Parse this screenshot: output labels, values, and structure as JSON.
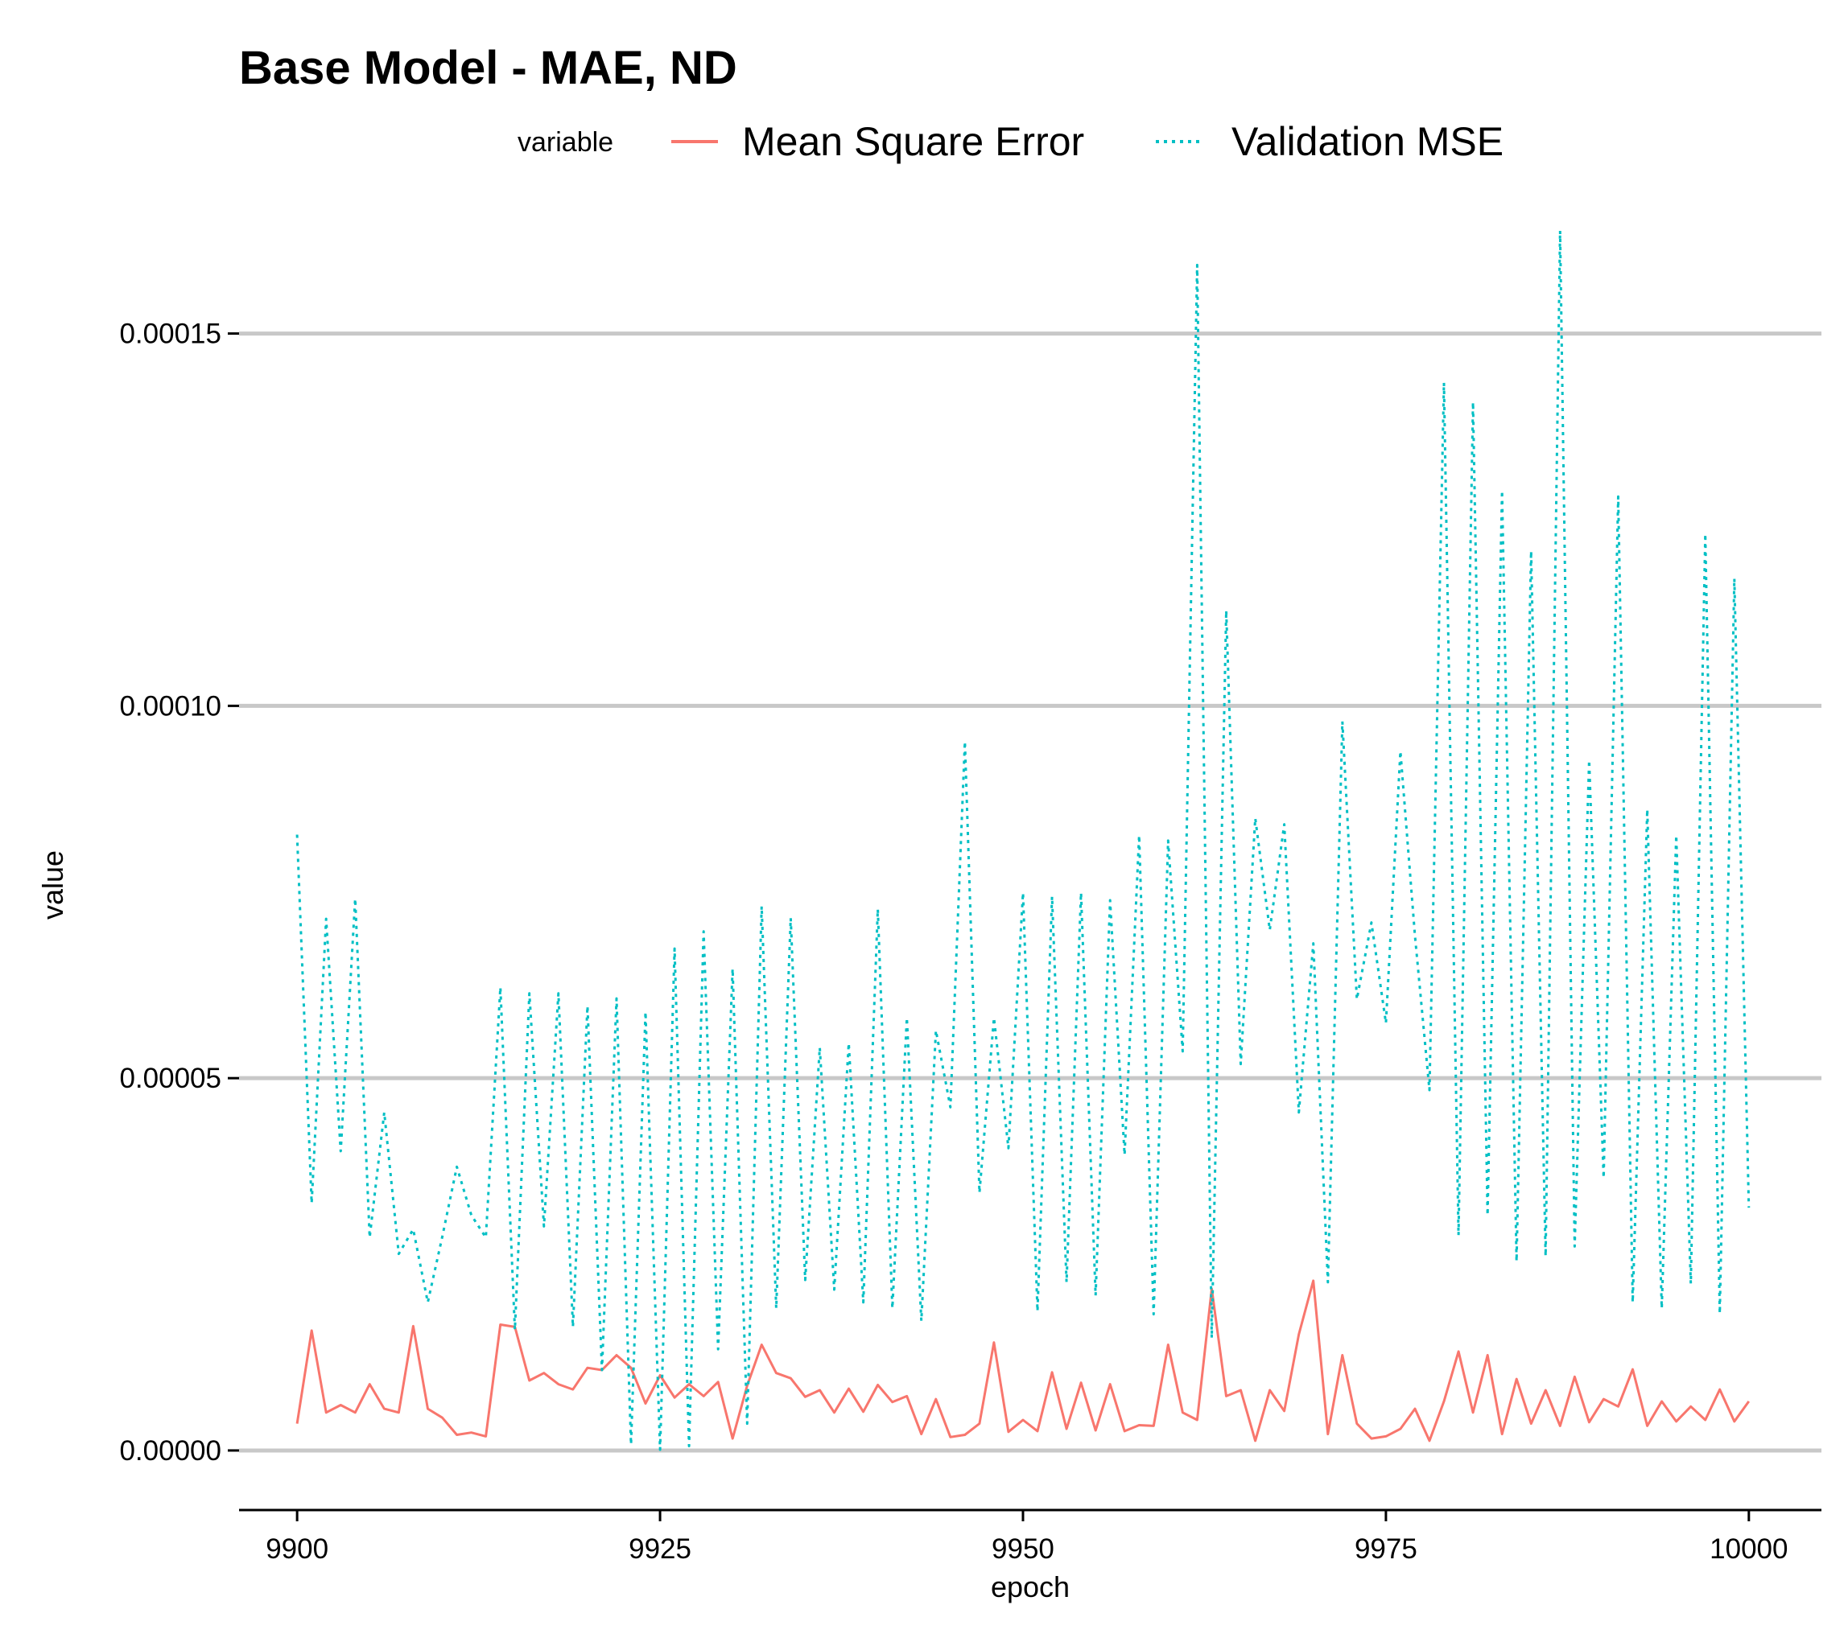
{
  "chart_data": {
    "type": "line",
    "title": "Base Model - MAE, ND",
    "xlabel": "epoch",
    "ylabel": "value",
    "xlim": [
      9896,
      10005
    ],
    "ylim": [
      -8e-06,
      0.000168
    ],
    "x_ticks": [
      9900,
      9925,
      9950,
      9975,
      10000
    ],
    "x_tick_labels": [
      "9900",
      "9925",
      "9950",
      "9975",
      "10000"
    ],
    "y_ticks": [
      0,
      5e-05,
      0.0001,
      0.00015
    ],
    "y_tick_labels": [
      "0.00000",
      "0.00005",
      "0.00010",
      "0.00015"
    ],
    "grid": "horizontal-major",
    "legend": {
      "title": "variable",
      "placement": "top"
    },
    "series": [
      {
        "name": "Mean Square Error",
        "color": "#f8766d",
        "linestyle": "solid",
        "x": [
          9900,
          9901,
          9902,
          9903,
          9904,
          9905,
          9906,
          9907,
          9908,
          9909,
          9910,
          9911,
          9912,
          9913,
          9914,
          9915,
          9916,
          9917,
          9918,
          9919,
          9920,
          9921,
          9922,
          9923,
          9924,
          9925,
          9926,
          9927,
          9928,
          9929,
          9930,
          9931,
          9932,
          9933,
          9934,
          9935,
          9936,
          9937,
          9938,
          9939,
          9940,
          9941,
          9942,
          9943,
          9944,
          9945,
          9946,
          9947,
          9948,
          9949,
          9950,
          9951,
          9952,
          9953,
          9954,
          9955,
          9956,
          9957,
          9958,
          9959,
          9960,
          9961,
          9962,
          9963,
          9964,
          9965,
          9966,
          9967,
          9968,
          9969,
          9970,
          9971,
          9972,
          9973,
          9974,
          9975,
          9976,
          9977,
          9978,
          9979,
          9980,
          9981,
          9982,
          9983,
          9984,
          9985,
          9986,
          9987,
          9988,
          9989,
          9990,
          9991,
          9992,
          9993,
          9994,
          9995,
          9996,
          9997,
          9998,
          9999,
          10000
        ],
        "values": [
          3.6e-06,
          1.61e-05,
          5.1e-06,
          6.1e-06,
          5.1e-06,
          8.9e-06,
          5.6e-06,
          5.1e-06,
          1.67e-05,
          5.6e-06,
          4.4e-06,
          2.1e-06,
          2.4e-06,
          1.9e-06,
          1.69e-05,
          1.66e-05,
          9.4e-06,
          1.04e-05,
          8.9e-06,
          8.2e-06,
          1.11e-05,
          1.08e-05,
          1.28e-05,
          1.11e-05,
          6.3e-06,
          1.01e-05,
          7.1e-06,
          8.9e-06,
          7.3e-06,
          9.2e-06,
          1.6e-06,
          8.7e-06,
          1.42e-05,
          1.04e-05,
          9.7e-06,
          7.2e-06,
          8.1e-06,
          5.1e-06,
          8.3e-06,
          5.2e-06,
          8.8e-06,
          6.5e-06,
          7.3e-06,
          2.2e-06,
          6.9e-06,
          1.8e-06,
          2.1e-06,
          3.6e-06,
          1.45e-05,
          2.5e-06,
          4.1e-06,
          2.6e-06,
          1.05e-05,
          2.9e-06,
          9.1e-06,
          2.7e-06,
          8.9e-06,
          2.6e-06,
          3.4e-06,
          3.3e-06,
          1.42e-05,
          5.1e-06,
          4.1e-06,
          2.17e-05,
          7.3e-06,
          8.1e-06,
          1.3e-06,
          8.1e-06,
          5.3e-06,
          1.56e-05,
          2.28e-05,
          2.2e-06,
          1.28e-05,
          3.6e-06,
          1.6e-06,
          1.9e-06,
          2.9e-06,
          5.6e-06,
          1.3e-06,
          6.6e-06,
          1.33e-05,
          5.1e-06,
          1.28e-05,
          2.2e-06,
          9.6e-06,
          3.6e-06,
          8.1e-06,
          3.3e-06,
          9.9e-06,
          3.8e-06,
          6.9e-06,
          5.9e-06,
          1.09e-05,
          3.3e-06,
          6.6e-06,
          3.9e-06,
          5.9e-06,
          4.1e-06,
          8.2e-06,
          3.9e-06,
          6.6e-06
        ]
      },
      {
        "name": "Validation MSE",
        "color": "#00bfc4",
        "linestyle": "dotted",
        "x": [
          9900,
          9901,
          9902,
          9903,
          9904,
          9905,
          9906,
          9907,
          9908,
          9909,
          9910,
          9911,
          9912,
          9913,
          9914,
          9915,
          9916,
          9917,
          9918,
          9919,
          9920,
          9921,
          9922,
          9923,
          9924,
          9925,
          9926,
          9927,
          9928,
          9929,
          9930,
          9931,
          9932,
          9933,
          9934,
          9935,
          9936,
          9937,
          9938,
          9939,
          9940,
          9941,
          9942,
          9943,
          9944,
          9945,
          9946,
          9947,
          9948,
          9949,
          9950,
          9951,
          9952,
          9953,
          9954,
          9955,
          9956,
          9957,
          9958,
          9959,
          9960,
          9961,
          9962,
          9963,
          9964,
          9965,
          9966,
          9967,
          9968,
          9969,
          9970,
          9971,
          9972,
          9973,
          9974,
          9975,
          9976,
          9977,
          9978,
          9979,
          9980,
          9981,
          9982,
          9983,
          9984,
          9985,
          9986,
          9987,
          9988,
          9989,
          9990,
          9991,
          9992,
          9993,
          9994,
          9995,
          9996,
          9997,
          9998,
          9999,
          10000
        ],
        "values": [
          8.27e-05,
          3.32e-05,
          7.14e-05,
          4.02e-05,
          7.41e-05,
          2.86e-05,
          4.54e-05,
          2.64e-05,
          2.97e-05,
          1.99e-05,
          2.87e-05,
          3.81e-05,
          3.16e-05,
          2.86e-05,
          6.22e-05,
          1.62e-05,
          6.14e-05,
          3.01e-05,
          6.14e-05,
          1.66e-05,
          5.97e-05,
          1.08e-05,
          6.07e-05,
          8e-07,
          5.89e-05,
          1e-07,
          6.74e-05,
          6e-07,
          6.97e-05,
          1.36e-05,
          6.47e-05,
          3.6e-06,
          7.31e-05,
          1.91e-05,
          7.15e-05,
          2.29e-05,
          5.41e-05,
          2.16e-05,
          5.47e-05,
          1.99e-05,
          7.27e-05,
          1.91e-05,
          5.81e-05,
          1.74e-05,
          5.64e-05,
          4.61e-05,
          9.52e-05,
          3.46e-05,
          5.81e-05,
          4.06e-05,
          7.49e-05,
          1.87e-05,
          7.44e-05,
          2.26e-05,
          7.49e-05,
          2.08e-05,
          7.39e-05,
          3.97e-05,
          8.26e-05,
          1.83e-05,
          8.19e-05,
          5.36e-05,
          0.0001592,
          1.51e-05,
          0.0001128,
          5.19e-05,
          8.49e-05,
          6.99e-05,
          8.41e-05,
          4.54e-05,
          6.81e-05,
          2.26e-05,
          9.79e-05,
          6.06e-05,
          7.09e-05,
          5.74e-05,
          9.39e-05,
          6.91e-05,
          4.84e-05,
          0.0001434,
          2.89e-05,
          0.0001408,
          3.16e-05,
          0.0001289,
          2.54e-05,
          0.0001208,
          2.61e-05,
          0.0001638,
          2.74e-05,
          9.27e-05,
          3.66e-05,
          0.0001281,
          1.99e-05,
          8.61e-05,
          1.91e-05,
          8.26e-05,
          2.24e-05,
          0.0001231,
          1.84e-05,
          0.0001171,
          3.26e-05
        ]
      }
    ]
  }
}
